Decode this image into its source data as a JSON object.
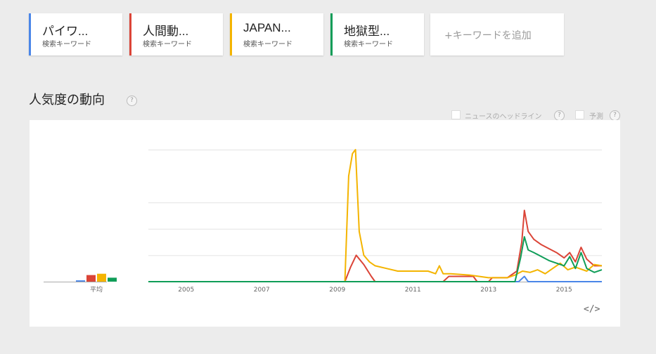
{
  "keywords": [
    {
      "title": "パイワ...",
      "sub": "検索キーワード",
      "color": "#4a86e8"
    },
    {
      "title": "人間動...",
      "sub": "検索キーワード",
      "color": "#db4437"
    },
    {
      "title": "JAPAN...",
      "sub": "検索キーワード",
      "color": "#f4b400"
    },
    {
      "title": "地獄型...",
      "sub": "検索キーワード",
      "color": "#0f9d58"
    }
  ],
  "add_keyword": "+キーワードを追加",
  "section_title": "人気度の動向",
  "options": {
    "news": "ニュースのヘッドライン",
    "forecast": "予測"
  },
  "help_glyph": "?",
  "embed_label": "</>",
  "chart_data": {
    "type": "line",
    "x_ticks": [
      "2005",
      "2007",
      "2009",
      "2011",
      "2013",
      "2015"
    ],
    "avg_label": "平均",
    "averages": [
      1,
      5,
      6,
      3
    ],
    "ylim": [
      0,
      100
    ],
    "series": [
      {
        "color": "#4a86e8",
        "points": [
          [
            2004.0,
            0
          ],
          [
            2013.8,
            0
          ],
          [
            2013.95,
            4
          ],
          [
            2014.05,
            0
          ],
          [
            2016.0,
            0
          ]
        ]
      },
      {
        "color": "#db4437",
        "points": [
          [
            2004.0,
            0
          ],
          [
            2009.2,
            0
          ],
          [
            2009.35,
            11
          ],
          [
            2009.5,
            20
          ],
          [
            2009.7,
            13
          ],
          [
            2009.9,
            4
          ],
          [
            2010.0,
            0
          ],
          [
            2011.8,
            0
          ],
          [
            2011.95,
            4
          ],
          [
            2012.6,
            4
          ],
          [
            2012.7,
            0
          ],
          [
            2013.0,
            0
          ],
          [
            2013.1,
            3
          ],
          [
            2013.5,
            3
          ],
          [
            2013.75,
            8
          ],
          [
            2013.88,
            30
          ],
          [
            2013.95,
            54
          ],
          [
            2014.05,
            38
          ],
          [
            2014.2,
            32
          ],
          [
            2014.4,
            28
          ],
          [
            2014.6,
            25
          ],
          [
            2014.8,
            22
          ],
          [
            2015.0,
            18
          ],
          [
            2015.15,
            22
          ],
          [
            2015.3,
            15
          ],
          [
            2015.45,
            26
          ],
          [
            2015.6,
            17
          ],
          [
            2015.8,
            12
          ],
          [
            2016.0,
            12
          ]
        ]
      },
      {
        "color": "#f4b400",
        "points": [
          [
            2004.0,
            0
          ],
          [
            2009.2,
            0
          ],
          [
            2009.3,
            80
          ],
          [
            2009.4,
            97
          ],
          [
            2009.48,
            100
          ],
          [
            2009.58,
            38
          ],
          [
            2009.7,
            20
          ],
          [
            2009.85,
            15
          ],
          [
            2010.0,
            12
          ],
          [
            2010.3,
            10
          ],
          [
            2010.6,
            8
          ],
          [
            2011.0,
            8
          ],
          [
            2011.4,
            8
          ],
          [
            2011.6,
            6
          ],
          [
            2011.7,
            12
          ],
          [
            2011.8,
            6
          ],
          [
            2012.0,
            6
          ],
          [
            2012.5,
            5
          ],
          [
            2013.0,
            3
          ],
          [
            2013.5,
            3
          ],
          [
            2013.7,
            5
          ],
          [
            2013.9,
            8
          ],
          [
            2014.1,
            7
          ],
          [
            2014.3,
            9
          ],
          [
            2014.5,
            6
          ],
          [
            2014.7,
            10
          ],
          [
            2014.9,
            14
          ],
          [
            2015.1,
            9
          ],
          [
            2015.3,
            11
          ],
          [
            2015.6,
            8
          ],
          [
            2015.8,
            13
          ],
          [
            2016.0,
            12
          ]
        ]
      },
      {
        "color": "#0f9d58",
        "points": [
          [
            2004.0,
            0
          ],
          [
            2013.7,
            0
          ],
          [
            2013.85,
            18
          ],
          [
            2013.95,
            34
          ],
          [
            2014.05,
            24
          ],
          [
            2014.2,
            22
          ],
          [
            2014.4,
            19
          ],
          [
            2014.6,
            16
          ],
          [
            2014.8,
            14
          ],
          [
            2015.0,
            12
          ],
          [
            2015.15,
            19
          ],
          [
            2015.3,
            10
          ],
          [
            2015.45,
            22
          ],
          [
            2015.6,
            10
          ],
          [
            2015.8,
            7
          ],
          [
            2016.0,
            9
          ]
        ]
      }
    ]
  }
}
